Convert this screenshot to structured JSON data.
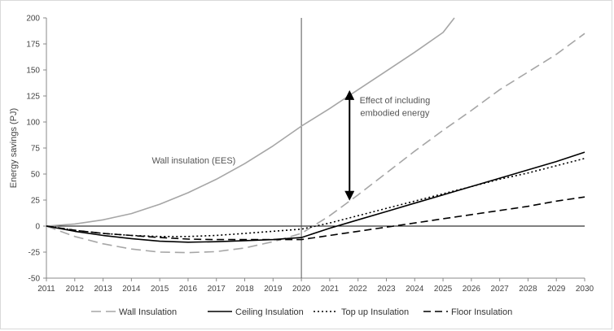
{
  "chart_data": {
    "type": "line",
    "title": "",
    "xlabel": "",
    "ylabel": "Energy savings (PJ)",
    "xlim": [
      2011,
      2030
    ],
    "ylim": [
      -50,
      200
    ],
    "x_ticks": [
      2011,
      2012,
      2013,
      2014,
      2015,
      2016,
      2017,
      2018,
      2019,
      2020,
      2021,
      2022,
      2023,
      2024,
      2025,
      2026,
      2027,
      2028,
      2029,
      2030
    ],
    "y_ticks": [
      -50,
      -25,
      0,
      25,
      50,
      75,
      100,
      125,
      150,
      175,
      200
    ],
    "grid": false,
    "legend_position": "bottom",
    "vertical_reference_line": 2020,
    "series": [
      {
        "name": "",
        "color": "#a6a6a6",
        "style": "solid",
        "points": [
          [
            2011,
            0
          ],
          [
            2012,
            2
          ],
          [
            2013,
            6
          ],
          [
            2014,
            12
          ],
          [
            2015,
            21
          ],
          [
            2016,
            32
          ],
          [
            2017,
            45
          ],
          [
            2018,
            60
          ],
          [
            2019,
            77
          ],
          [
            2020,
            96
          ],
          [
            2021,
            113
          ],
          [
            2022,
            131
          ],
          [
            2023,
            149
          ],
          [
            2024,
            167
          ],
          [
            2025,
            186
          ],
          [
            2025.4,
            200
          ]
        ]
      },
      {
        "name": "Wall Insulation",
        "color": "#a6a6a6",
        "style": "long-dash",
        "points": [
          [
            2011,
            0
          ],
          [
            2012,
            -10
          ],
          [
            2013,
            -17
          ],
          [
            2014,
            -22
          ],
          [
            2015,
            -25
          ],
          [
            2016,
            -25.5
          ],
          [
            2017,
            -24.5
          ],
          [
            2018,
            -21
          ],
          [
            2019,
            -15
          ],
          [
            2020,
            -7
          ],
          [
            2021,
            10
          ],
          [
            2022,
            30
          ],
          [
            2023,
            51
          ],
          [
            2024,
            72
          ],
          [
            2025,
            92
          ],
          [
            2026,
            111
          ],
          [
            2027,
            131
          ],
          [
            2028,
            148
          ],
          [
            2029,
            165
          ],
          [
            2030,
            185
          ]
        ]
      },
      {
        "name": "Ceiling Insulation",
        "color": "#000000",
        "style": "solid",
        "points": [
          [
            2011,
            0
          ],
          [
            2012,
            -5
          ],
          [
            2013,
            -9
          ],
          [
            2014,
            -12
          ],
          [
            2015,
            -14.5
          ],
          [
            2016,
            -15.5
          ],
          [
            2017,
            -15
          ],
          [
            2018,
            -14
          ],
          [
            2019,
            -13
          ],
          [
            2020,
            -11
          ],
          [
            2021,
            -2
          ],
          [
            2022,
            6
          ],
          [
            2023,
            14
          ],
          [
            2024,
            22
          ],
          [
            2025,
            30
          ],
          [
            2026,
            38
          ],
          [
            2027,
            46
          ],
          [
            2028,
            54
          ],
          [
            2029,
            62
          ],
          [
            2030,
            71
          ]
        ]
      },
      {
        "name": "Top up Insulation",
        "color": "#000000",
        "style": "dotted",
        "points": [
          [
            2011,
            0
          ],
          [
            2012,
            -4
          ],
          [
            2013,
            -7
          ],
          [
            2014,
            -9
          ],
          [
            2015,
            -10
          ],
          [
            2016,
            -10
          ],
          [
            2017,
            -9
          ],
          [
            2018,
            -7
          ],
          [
            2019,
            -5
          ],
          [
            2020,
            -3
          ],
          [
            2021,
            3
          ],
          [
            2022,
            10
          ],
          [
            2023,
            17
          ],
          [
            2024,
            24
          ],
          [
            2025,
            31
          ],
          [
            2026,
            38
          ],
          [
            2027,
            45
          ],
          [
            2028,
            51
          ],
          [
            2029,
            58
          ],
          [
            2030,
            65
          ]
        ]
      },
      {
        "name": "Floor Insulation",
        "color": "#000000",
        "style": "dashed",
        "points": [
          [
            2011,
            0
          ],
          [
            2012,
            -4
          ],
          [
            2013,
            -7
          ],
          [
            2014,
            -9
          ],
          [
            2015,
            -11
          ],
          [
            2016,
            -12.5
          ],
          [
            2017,
            -13
          ],
          [
            2018,
            -13
          ],
          [
            2019,
            -13
          ],
          [
            2020,
            -13
          ],
          [
            2021,
            -9
          ],
          [
            2022,
            -5
          ],
          [
            2023,
            -1
          ],
          [
            2024,
            3
          ],
          [
            2025,
            7
          ],
          [
            2026,
            11
          ],
          [
            2027,
            15
          ],
          [
            2028,
            19
          ],
          [
            2029,
            24
          ],
          [
            2030,
            28
          ]
        ]
      }
    ],
    "annotations": [
      {
        "text": "Wall insulation (EES)",
        "x": 2016.2,
        "y": 60
      },
      {
        "text": "Effect of including",
        "x": 2023.3,
        "y": 118
      },
      {
        "text": "embodied energy",
        "x": 2023.3,
        "y": 106
      }
    ],
    "arrow": {
      "x": 2021.7,
      "y_top": 129,
      "y_bottom": 26
    }
  }
}
